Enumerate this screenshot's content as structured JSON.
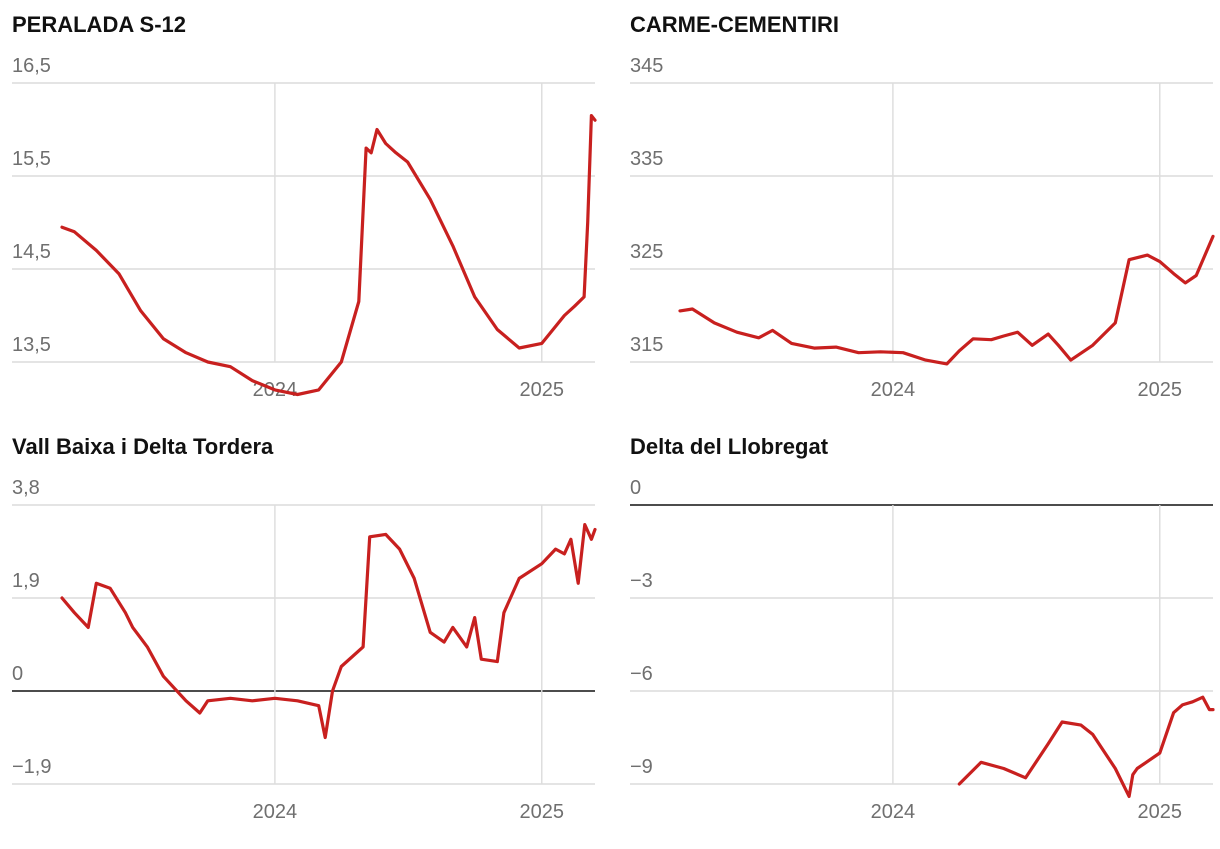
{
  "colors": {
    "series": "#c8201f",
    "grid": "#dcdcdc",
    "zero": "#111111",
    "tick": "#6f6f6f"
  },
  "chart_data": [
    {
      "type": "line",
      "title": "PERALADA S-12",
      "yticks": [
        "16,5",
        "15,5",
        "14,5",
        "13,5"
      ],
      "ylim": [
        13.5,
        16.5
      ],
      "xlim": [
        "2023-03-15",
        "2025-03-15"
      ],
      "xticks": [
        {
          "date": "2024-01-01",
          "label": "2024"
        },
        {
          "date": "2025-01-01",
          "label": "2025"
        }
      ],
      "grid": true,
      "series": [
        {
          "x": [
            "2023-03-15",
            "2023-04-01",
            "2023-05-01",
            "2023-06-01",
            "2023-07-01",
            "2023-08-01",
            "2023-09-01",
            "2023-10-01",
            "2023-11-01",
            "2023-12-01",
            "2024-01-01",
            "2024-02-01",
            "2024-03-01",
            "2024-04-01",
            "2024-04-25",
            "2024-05-05",
            "2024-05-12",
            "2024-05-20",
            "2024-06-01",
            "2024-06-15",
            "2024-07-01",
            "2024-08-01",
            "2024-09-01",
            "2024-10-01",
            "2024-11-01",
            "2024-12-01",
            "2025-01-01",
            "2025-02-01",
            "2025-02-15",
            "2025-02-28",
            "2025-03-05",
            "2025-03-10",
            "2025-03-15"
          ],
          "y": [
            14.95,
            14.9,
            14.7,
            14.45,
            14.05,
            13.75,
            13.6,
            13.5,
            13.45,
            13.3,
            13.2,
            13.15,
            13.2,
            13.5,
            14.15,
            15.8,
            15.75,
            16.0,
            15.85,
            15.75,
            15.65,
            15.25,
            14.75,
            14.2,
            13.85,
            13.65,
            13.7,
            14.0,
            14.1,
            14.2,
            15.0,
            16.15,
            16.1
          ]
        }
      ]
    },
    {
      "type": "line",
      "title": "CARME-CEMENTIRI",
      "yticks": [
        "345",
        "335",
        "325",
        "315"
      ],
      "ylim": [
        315,
        345
      ],
      "xlim": [
        "2023-03-15",
        "2025-03-15"
      ],
      "xticks": [
        {
          "date": "2024-01-01",
          "label": "2024"
        },
        {
          "date": "2025-01-01",
          "label": "2025"
        }
      ],
      "grid": true,
      "series": [
        {
          "x": [
            "2023-03-15",
            "2023-04-01",
            "2023-05-01",
            "2023-06-01",
            "2023-07-01",
            "2023-07-20",
            "2023-08-15",
            "2023-09-15",
            "2023-10-15",
            "2023-11-15",
            "2023-12-15",
            "2024-01-15",
            "2024-02-15",
            "2024-03-15",
            "2024-04-01",
            "2024-04-20",
            "2024-05-15",
            "2024-06-01",
            "2024-06-20",
            "2024-07-10",
            "2024-08-01",
            "2024-08-15",
            "2024-09-01",
            "2024-10-01",
            "2024-11-01",
            "2024-11-20",
            "2024-12-15",
            "2025-01-01",
            "2025-01-20",
            "2025-02-05",
            "2025-02-20",
            "2025-03-15"
          ],
          "y": [
            320.5,
            320.7,
            319.2,
            318.2,
            317.6,
            318.4,
            317.0,
            316.5,
            316.6,
            316.0,
            316.1,
            316.0,
            315.2,
            314.8,
            316.2,
            317.5,
            317.4,
            317.8,
            318.2,
            316.8,
            318.0,
            316.8,
            315.2,
            316.8,
            319.2,
            326.0,
            326.5,
            325.8,
            324.5,
            323.5,
            324.3,
            328.5
          ]
        }
      ]
    },
    {
      "type": "line",
      "title": "Vall Baixa i Delta Tordera",
      "yticks": [
        "3,8",
        "1,9",
        "0",
        "−1,9"
      ],
      "ylim": [
        -1.9,
        3.8
      ],
      "xlim": [
        "2023-03-15",
        "2025-03-15"
      ],
      "xticks": [
        {
          "date": "2024-01-01",
          "label": "2024"
        },
        {
          "date": "2025-01-01",
          "label": "2025"
        }
      ],
      "grid": true,
      "series": [
        {
          "x": [
            "2023-03-15",
            "2023-04-01",
            "2023-04-20",
            "2023-05-01",
            "2023-05-20",
            "2023-06-10",
            "2023-06-20",
            "2023-07-10",
            "2023-08-01",
            "2023-09-01",
            "2023-09-20",
            "2023-10-01",
            "2023-11-01",
            "2023-12-01",
            "2024-01-01",
            "2024-02-01",
            "2024-03-01",
            "2024-03-10",
            "2024-03-20",
            "2024-04-01",
            "2024-05-01",
            "2024-05-10",
            "2024-06-01",
            "2024-06-20",
            "2024-07-10",
            "2024-08-01",
            "2024-08-20",
            "2024-09-01",
            "2024-09-20",
            "2024-10-01",
            "2024-10-10",
            "2024-11-01",
            "2024-11-10",
            "2024-12-01",
            "2025-01-01",
            "2025-01-20",
            "2025-02-01",
            "2025-02-10",
            "2025-02-20",
            "2025-03-01",
            "2025-03-10",
            "2025-03-15"
          ],
          "y": [
            1.9,
            1.6,
            1.3,
            2.2,
            2.1,
            1.6,
            1.3,
            0.9,
            0.3,
            -0.2,
            -0.45,
            -0.2,
            -0.15,
            -0.2,
            -0.15,
            -0.2,
            -0.3,
            -0.95,
            0.0,
            0.5,
            0.9,
            3.15,
            3.2,
            2.9,
            2.3,
            1.2,
            1.0,
            1.3,
            0.9,
            1.5,
            0.65,
            0.6,
            1.6,
            2.3,
            2.6,
            2.9,
            2.8,
            3.1,
            2.2,
            3.4,
            3.1,
            3.3
          ]
        }
      ]
    },
    {
      "type": "line",
      "title": "Delta del Llobregat",
      "yticks": [
        "0",
        "−3",
        "−6",
        "−9"
      ],
      "ylim": [
        -9,
        0
      ],
      "xlim": [
        "2023-03-15",
        "2025-03-15"
      ],
      "xticks": [
        {
          "date": "2024-01-01",
          "label": "2024"
        },
        {
          "date": "2025-01-01",
          "label": "2025"
        }
      ],
      "grid": true,
      "series": [
        {
          "x": [
            "2024-04-01",
            "2024-05-01",
            "2024-06-01",
            "2024-07-01",
            "2024-08-01",
            "2024-08-20",
            "2024-09-15",
            "2024-10-01",
            "2024-11-01",
            "2024-11-20",
            "2024-11-25",
            "2024-12-01",
            "2025-01-01",
            "2025-01-20",
            "2025-02-01",
            "2025-02-15",
            "2025-03-01",
            "2025-03-10",
            "2025-03-15"
          ],
          "y": [
            -9.0,
            -8.3,
            -8.5,
            -8.8,
            -7.7,
            -7.0,
            -7.1,
            -7.4,
            -8.5,
            -9.4,
            -8.7,
            -8.5,
            -8.0,
            -6.7,
            -6.45,
            -6.35,
            -6.2,
            -6.6,
            -6.6
          ]
        }
      ]
    }
  ]
}
